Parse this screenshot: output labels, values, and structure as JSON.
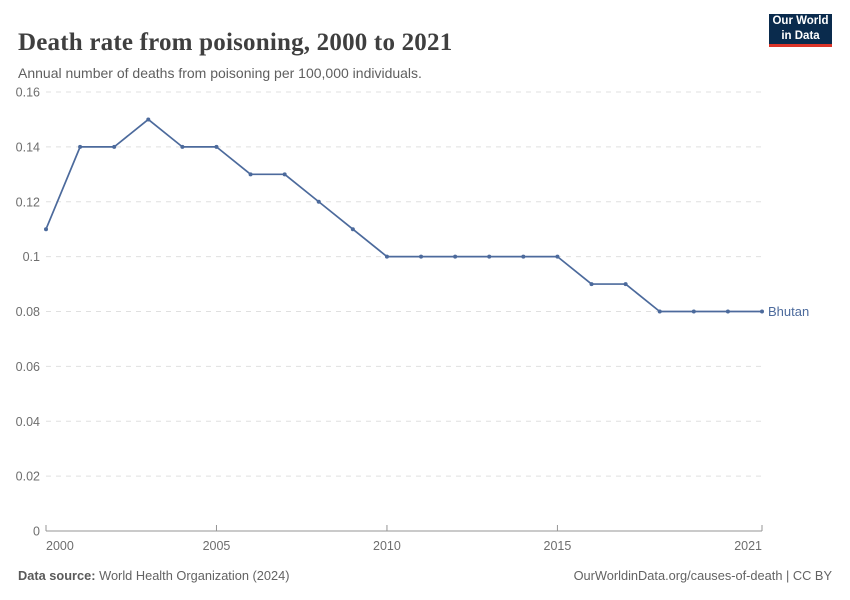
{
  "header": {
    "title": "Death rate from poisoning, 2000 to 2021",
    "subtitle": "Annual number of deaths from poisoning per 100,000 individuals.",
    "logo": {
      "line1": "Our World",
      "line2": "in Data"
    }
  },
  "footer": {
    "source_label": "Data source:",
    "source_text": "World Health Organization (2024)",
    "credit": "OurWorldinData.org/causes-of-death | CC BY"
  },
  "colors": {
    "series_line": "#4C6A9C",
    "gridline": "#e0e0e0",
    "axis": "#949494",
    "tick_label": "#6e6e6e",
    "logo_background": "#0a2b4d",
    "logo_accent": "#dc3428"
  },
  "chart_data": {
    "type": "line",
    "title": "Death rate from poisoning, 2000 to 2021",
    "subtitle": "Annual number of deaths from poisoning per 100,000 individuals.",
    "x": [
      2000,
      2001,
      2002,
      2003,
      2004,
      2005,
      2006,
      2007,
      2008,
      2009,
      2010,
      2011,
      2012,
      2013,
      2014,
      2015,
      2016,
      2017,
      2018,
      2019,
      2020,
      2021
    ],
    "series": [
      {
        "name": "Bhutan",
        "color": "#4C6A9C",
        "values": [
          0.11,
          0.14,
          0.14,
          0.15,
          0.14,
          0.14,
          0.13,
          0.13,
          0.12,
          0.11,
          0.1,
          0.1,
          0.1,
          0.1,
          0.1,
          0.1,
          0.09,
          0.09,
          0.08,
          0.08,
          0.08,
          0.08
        ]
      }
    ],
    "xlabel": "",
    "ylabel": "",
    "xlim": [
      2000,
      2021
    ],
    "ylim": [
      0,
      0.16
    ],
    "xticks": [
      2000,
      2005,
      2010,
      2015,
      2021
    ],
    "xtick_labels": [
      "2000",
      "2005",
      "2010",
      "2015",
      "2021"
    ],
    "yticks": [
      0,
      0.02,
      0.04,
      0.06,
      0.08,
      0.1,
      0.12,
      0.14,
      0.16
    ],
    "ytick_labels": [
      "0",
      "0.02",
      "0.04",
      "0.06",
      "0.08",
      "0.1",
      "0.12",
      "0.14",
      "0.16"
    ],
    "grid": "dashed-horizontal",
    "legend_position": "end-of-line"
  }
}
